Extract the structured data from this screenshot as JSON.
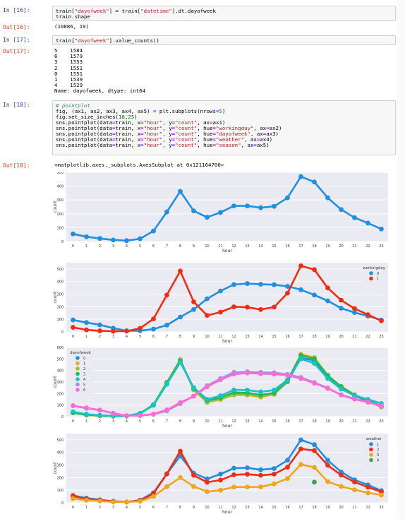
{
  "cells": [
    {
      "in_prompt": "In [16]:",
      "code": [
        [
          {
            "t": "train[",
            "c": ""
          },
          {
            "t": "\"dayofweek\"",
            "c": "st"
          },
          {
            "t": "] = train[",
            "c": ""
          },
          {
            "t": "\"datetime\"",
            "c": "st"
          },
          {
            "t": "].dt.dayofweek",
            "c": ""
          }
        ],
        [
          {
            "t": "train.shape",
            "c": ""
          }
        ]
      ],
      "out_prompt": "Out[16]:",
      "output": "(10886, 19)"
    },
    {
      "in_prompt": "In [17]:",
      "code": [
        [
          {
            "t": "train[",
            "c": ""
          },
          {
            "t": "\"dayofweek\"",
            "c": "st"
          },
          {
            "t": "].value_counts()",
            "c": ""
          }
        ]
      ],
      "out_prompt": "Out[17]:",
      "output": "5    1584\n6    1579\n3    1553\n2    1551\n0    1551\n1    1539\n4    1529\nName: dayofweek, dtype: int64"
    },
    {
      "in_prompt": "In [18]:",
      "code": [
        [
          {
            "t": "# pointplot",
            "c": "cm"
          }
        ],
        [
          {
            "t": "fig, (ax1, ax2, ax3, ax4, ax5) ",
            "c": ""
          },
          {
            "t": "=",
            "c": "op"
          },
          {
            "t": " plt.subplots(nrows",
            "c": ""
          },
          {
            "t": "=",
            "c": "op"
          },
          {
            "t": "5",
            "c": "nm"
          },
          {
            "t": ")",
            "c": ""
          }
        ],
        [
          {
            "t": "fig.set_size_inches(",
            "c": ""
          },
          {
            "t": "18",
            "c": "nm"
          },
          {
            "t": ",",
            "c": ""
          },
          {
            "t": "25",
            "c": "nm"
          },
          {
            "t": ")",
            "c": ""
          }
        ],
        [
          {
            "t": "sns.pointplot(data",
            "c": ""
          },
          {
            "t": "=",
            "c": "op"
          },
          {
            "t": "train, x",
            "c": ""
          },
          {
            "t": "=",
            "c": "op"
          },
          {
            "t": "\"hour\"",
            "c": "st"
          },
          {
            "t": ", y",
            "c": ""
          },
          {
            "t": "=",
            "c": "op"
          },
          {
            "t": "\"count\"",
            "c": "st"
          },
          {
            "t": ", ax",
            "c": ""
          },
          {
            "t": "=",
            "c": "op"
          },
          {
            "t": "ax1)",
            "c": ""
          }
        ],
        [
          {
            "t": "sns.pointplot(data",
            "c": ""
          },
          {
            "t": "=",
            "c": "op"
          },
          {
            "t": "train, x",
            "c": ""
          },
          {
            "t": "=",
            "c": "op"
          },
          {
            "t": "\"hour\"",
            "c": "st"
          },
          {
            "t": ", y",
            "c": ""
          },
          {
            "t": "=",
            "c": "op"
          },
          {
            "t": "\"count\"",
            "c": "st"
          },
          {
            "t": ", hue",
            "c": ""
          },
          {
            "t": "=",
            "c": "op"
          },
          {
            "t": "\"workingday\"",
            "c": "st"
          },
          {
            "t": ", ax",
            "c": ""
          },
          {
            "t": "=",
            "c": "op"
          },
          {
            "t": "ax2)",
            "c": ""
          }
        ],
        [
          {
            "t": "sns.pointplot(data",
            "c": ""
          },
          {
            "t": "=",
            "c": "op"
          },
          {
            "t": "train, x",
            "c": ""
          },
          {
            "t": "=",
            "c": "op"
          },
          {
            "t": "\"hour\"",
            "c": "st"
          },
          {
            "t": ", y",
            "c": ""
          },
          {
            "t": "=",
            "c": "op"
          },
          {
            "t": "\"count\"",
            "c": "st"
          },
          {
            "t": ", hue",
            "c": ""
          },
          {
            "t": "=",
            "c": "op"
          },
          {
            "t": "\"dayofweek\"",
            "c": "st"
          },
          {
            "t": ", ax",
            "c": ""
          },
          {
            "t": "=",
            "c": "op"
          },
          {
            "t": "ax3)",
            "c": ""
          }
        ],
        [
          {
            "t": "sns.pointplot(data",
            "c": ""
          },
          {
            "t": "=",
            "c": "op"
          },
          {
            "t": "train, x",
            "c": ""
          },
          {
            "t": "=",
            "c": "op"
          },
          {
            "t": "\"hour\"",
            "c": "st"
          },
          {
            "t": ", y",
            "c": ""
          },
          {
            "t": "=",
            "c": "op"
          },
          {
            "t": "\"count\"",
            "c": "st"
          },
          {
            "t": ", hue",
            "c": ""
          },
          {
            "t": "=",
            "c": "op"
          },
          {
            "t": "\"weather\"",
            "c": "st"
          },
          {
            "t": ", ax",
            "c": ""
          },
          {
            "t": "=",
            "c": "op"
          },
          {
            "t": "ax4)",
            "c": ""
          }
        ],
        [
          {
            "t": "sns.pointplot(data",
            "c": ""
          },
          {
            "t": "=",
            "c": "op"
          },
          {
            "t": "train, x",
            "c": ""
          },
          {
            "t": "=",
            "c": "op"
          },
          {
            "t": "\"hour\"",
            "c": "st"
          },
          {
            "t": ", y",
            "c": ""
          },
          {
            "t": "=",
            "c": "op"
          },
          {
            "t": "\"count\"",
            "c": "st"
          },
          {
            "t": ", hue",
            "c": ""
          },
          {
            "t": "=",
            "c": "op"
          },
          {
            "t": "\"season\"",
            "c": "st"
          },
          {
            "t": ", ax",
            "c": ""
          },
          {
            "t": "=",
            "c": "op"
          },
          {
            "t": "ax5)",
            "c": ""
          }
        ]
      ],
      "out_prompt": "Out[18]:",
      "output": "<matplotlib.axes._subplots.AxesSubplot at 0x121164700>"
    }
  ],
  "chart_data": [
    {
      "type": "line",
      "x": [
        0,
        1,
        2,
        3,
        4,
        5,
        6,
        7,
        8,
        9,
        10,
        11,
        12,
        13,
        14,
        15,
        16,
        17,
        18,
        19,
        20,
        21,
        22,
        23
      ],
      "xlabel": "hour",
      "ylabel": "count",
      "ylim": [
        0,
        500
      ],
      "yticks": [
        0,
        100,
        200,
        300,
        400,
        500
      ],
      "series": [
        {
          "color": "#1f8fe0",
          "values": [
            55,
            34,
            22,
            11,
            6,
            20,
            76,
            214,
            362,
            221,
            175,
            210,
            257,
            257,
            244,
            254,
            316,
            469,
            430,
            316,
            231,
            172,
            133,
            90
          ]
        }
      ]
    },
    {
      "type": "line",
      "x": [
        0,
        1,
        2,
        3,
        4,
        5,
        6,
        7,
        8,
        9,
        10,
        11,
        12,
        13,
        14,
        15,
        16,
        17,
        18,
        19,
        20,
        21,
        22,
        23
      ],
      "xlabel": "hour",
      "ylabel": "count",
      "ylim": [
        0,
        550
      ],
      "yticks": [
        0,
        100,
        200,
        300,
        400,
        500
      ],
      "legend_title": "workingday",
      "legend_position": "top-right",
      "series": [
        {
          "name": "0",
          "color": "#1f8fe0",
          "values": [
            95,
            74,
            56,
            29,
            9,
            9,
            22,
            54,
            118,
            178,
            263,
            325,
            376,
            384,
            378,
            375,
            362,
            335,
            293,
            247,
            188,
            154,
            126,
            94
          ]
        },
        {
          "name": "1",
          "color": "#f02d12",
          "values": [
            36,
            16,
            8,
            5,
            6,
            28,
            103,
            293,
            484,
            239,
            131,
            157,
            199,
            196,
            178,
            197,
            308,
            525,
            495,
            349,
            252,
            185,
            137,
            88
          ]
        }
      ]
    },
    {
      "type": "line",
      "x": [
        0,
        1,
        2,
        3,
        4,
        5,
        6,
        7,
        8,
        9,
        10,
        11,
        12,
        13,
        14,
        15,
        16,
        17,
        18,
        19,
        20,
        21,
        22,
        23
      ],
      "xlabel": "hour",
      "ylabel": "count",
      "ylim": [
        0,
        600
      ],
      "yticks": [
        0,
        100,
        200,
        300,
        400,
        500,
        600
      ],
      "legend_title": "dayofweek",
      "legend_position": "top-left",
      "series": [
        {
          "name": "0",
          "color": "#1f8fe0",
          "values": [
            35,
            14,
            8,
            4,
            5,
            26,
            104,
            290,
            489,
            232,
            124,
            153,
            195,
            193,
            175,
            194,
            303,
            510,
            486,
            342,
            246,
            181,
            134,
            84
          ]
        },
        {
          "name": "1",
          "color": "#f0a51c",
          "values": [
            32,
            14,
            7,
            4,
            5,
            27,
            103,
            298,
            495,
            232,
            125,
            149,
            188,
            187,
            170,
            193,
            312,
            540,
            512,
            355,
            262,
            190,
            140,
            86
          ]
        },
        {
          "name": "2",
          "color": "#8ccb30",
          "values": [
            34,
            15,
            8,
            4,
            5,
            28,
            103,
            296,
            490,
            236,
            130,
            154,
            190,
            189,
            176,
            197,
            311,
            535,
            507,
            360,
            258,
            188,
            139,
            89
          ]
        },
        {
          "name": "3",
          "color": "#25b75a",
          "values": [
            33,
            16,
            9,
            5,
            6,
            29,
            102,
            292,
            484,
            246,
            140,
            164,
            210,
            206,
            188,
            205,
            316,
            531,
            501,
            354,
            260,
            185,
            140,
            91
          ]
        },
        {
          "name": "4",
          "color": "#16c4c8",
          "values": [
            42,
            21,
            12,
            6,
            6,
            27,
            98,
            281,
            470,
            252,
            150,
            181,
            232,
            230,
            215,
            230,
            320,
            500,
            462,
            330,
            240,
            182,
            150,
            114
          ]
        },
        {
          "name": "5",
          "color": "#a48ef0",
          "values": [
            95,
            72,
            55,
            28,
            9,
            9,
            20,
            50,
            113,
            178,
            268,
            330,
            384,
            389,
            384,
            381,
            366,
            340,
            296,
            248,
            189,
            155,
            127,
            95
          ]
        },
        {
          "name": "6",
          "color": "#ff6bd0",
          "values": [
            94,
            76,
            57,
            30,
            8,
            9,
            23,
            58,
            122,
            176,
            258,
            319,
            368,
            378,
            372,
            369,
            358,
            330,
            290,
            245,
            187,
            152,
            124,
            92
          ]
        }
      ]
    },
    {
      "type": "line",
      "x": [
        0,
        1,
        2,
        3,
        4,
        5,
        6,
        7,
        8,
        9,
        10,
        11,
        12,
        13,
        14,
        15,
        16,
        17,
        18,
        19,
        20,
        21,
        22,
        23
      ],
      "xlabel": "hour",
      "ylabel": "count",
      "ylim": [
        0,
        550
      ],
      "yticks": [
        0,
        100,
        200,
        300,
        400,
        500
      ],
      "legend_title": "weather",
      "legend_position": "top-right",
      "series": [
        {
          "name": "1",
          "color": "#1f8fe0",
          "values": [
            58,
            37,
            24,
            12,
            6,
            21,
            80,
            230,
            372,
            235,
            190,
            228,
            275,
            278,
            262,
            272,
            338,
            500,
            462,
            338,
            245,
            182,
            142,
            96
          ]
        },
        {
          "name": "2",
          "color": "#f02d12",
          "values": [
            53,
            31,
            20,
            10,
            6,
            18,
            73,
            230,
            410,
            218,
            163,
            180,
            222,
            227,
            218,
            228,
            283,
            428,
            415,
            298,
            220,
            165,
            124,
            86
          ]
        },
        {
          "name": "3",
          "color": "#f0a51c",
          "values": [
            33,
            20,
            14,
            6,
            6,
            12,
            50,
            128,
            200,
            130,
            88,
            100,
            125,
            125,
            126,
            150,
            193,
            305,
            282,
            168,
            130,
            103,
            79,
            62
          ]
        },
        {
          "name": "4",
          "color": "#4c9a50",
          "points": [
            [
              18,
              164
            ]
          ]
        }
      ]
    }
  ]
}
